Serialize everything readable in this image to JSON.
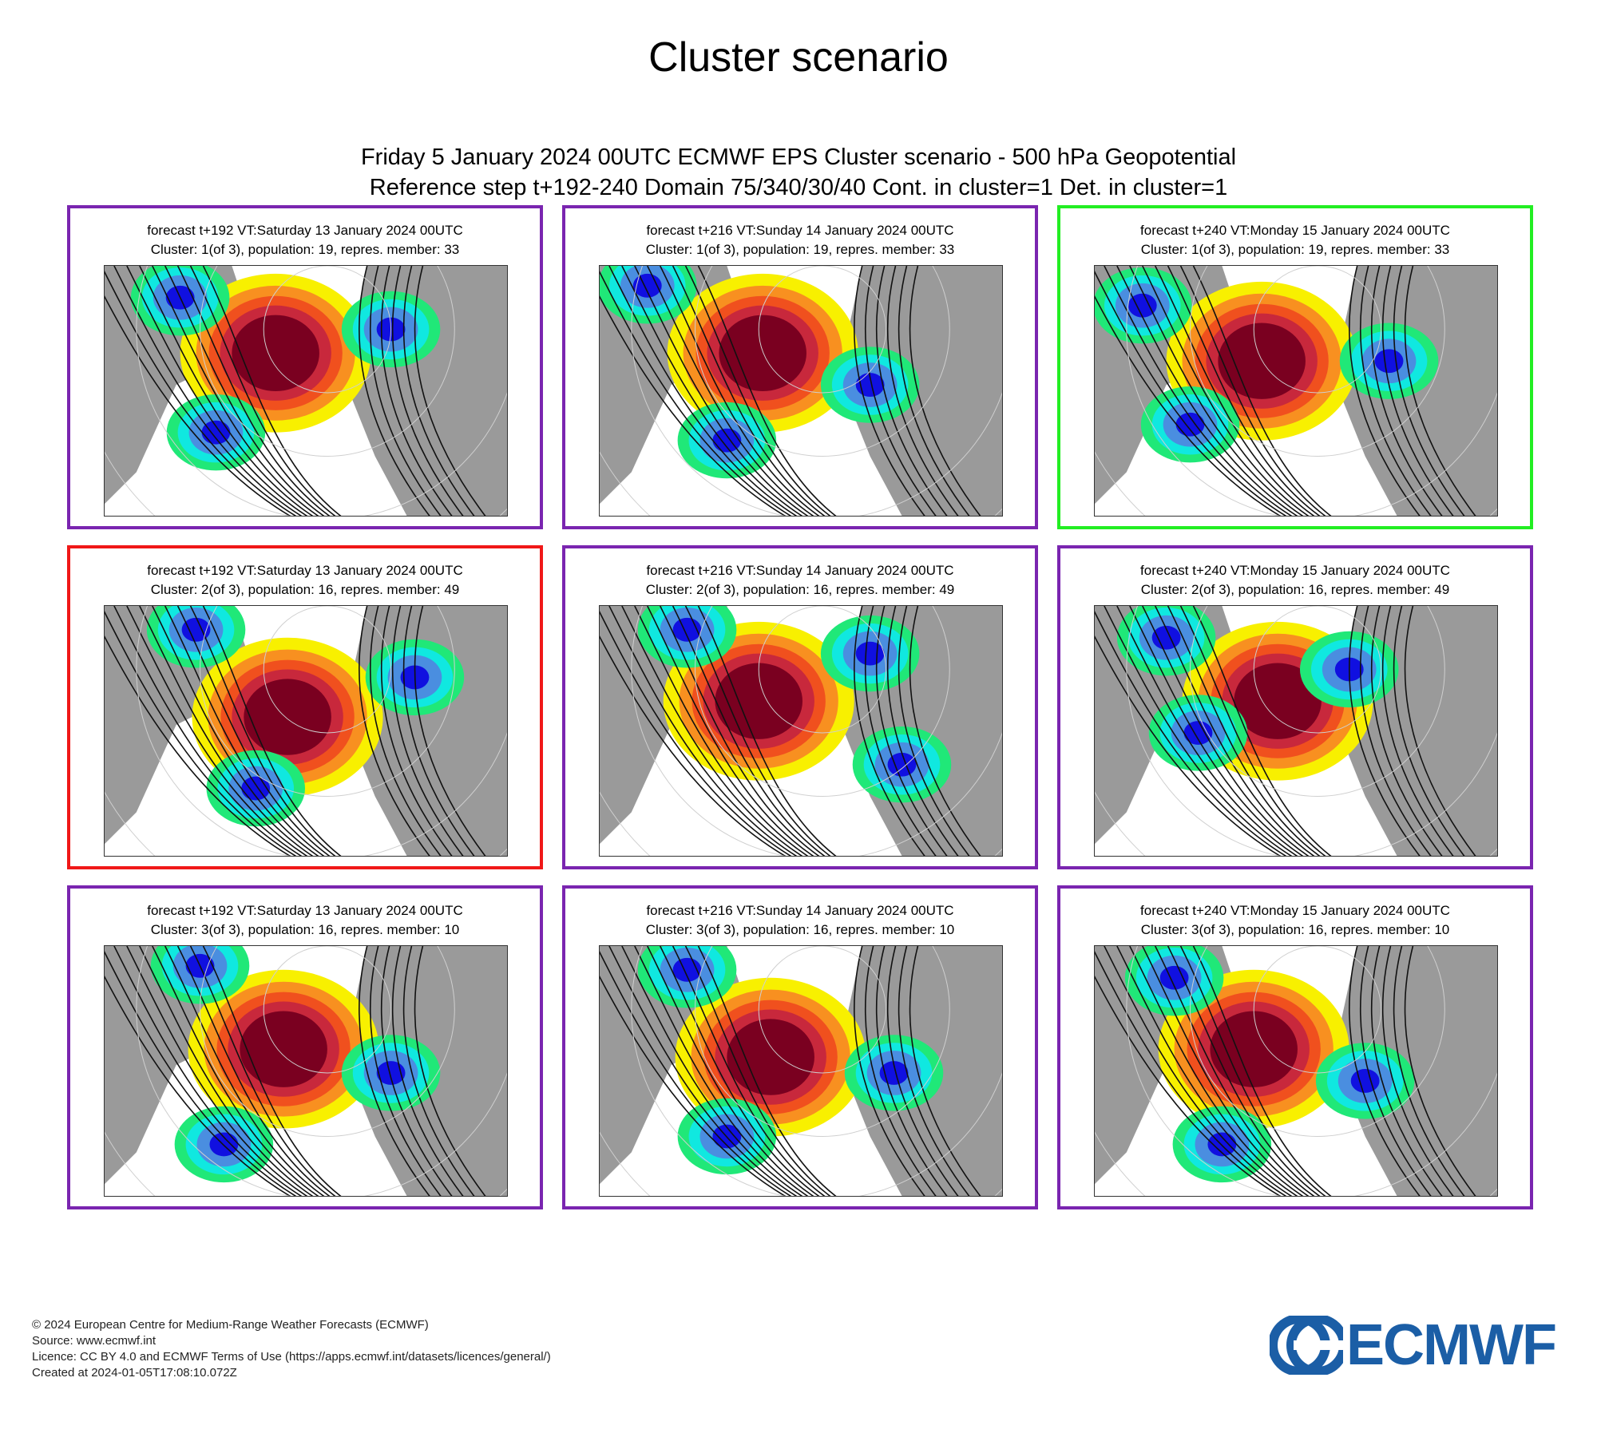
{
  "page_title": "Cluster scenario",
  "header": {
    "line1": "Friday 5 January 2024 00UTC ECMWF EPS Cluster scenario - 500 hPa Geopotential",
    "line2": "Reference step t+192-240 Domain 75/340/30/40 Cont. in cluster=1 Det. in cluster=1"
  },
  "panels": [
    {
      "title": "forecast t+192 VT:Saturday 13 January 2024 00UTC",
      "subtitle": "Cluster: 1(of 3), population: 19, repres. member: 33",
      "frame": "#7a25b0"
    },
    {
      "title": "forecast t+216 VT:Sunday 14 January 2024 00UTC",
      "subtitle": "Cluster: 1(of 3), population: 19, repres. member: 33",
      "frame": "#7a25b0"
    },
    {
      "title": "forecast t+240 VT:Monday 15 January 2024 00UTC",
      "subtitle": "Cluster: 1(of 3), population: 19, repres. member: 33",
      "frame": "#22ee22"
    },
    {
      "title": "forecast t+192 VT:Saturday 13 January 2024 00UTC",
      "subtitle": "Cluster: 2(of 3), population: 16, repres. member: 49",
      "frame": "#f01818"
    },
    {
      "title": "forecast t+216 VT:Sunday 14 January 2024 00UTC",
      "subtitle": "Cluster: 2(of 3), population: 16, repres. member: 49",
      "frame": "#7a25b0"
    },
    {
      "title": "forecast t+240 VT:Monday 15 January 2024 00UTC",
      "subtitle": "Cluster: 2(of 3), population: 16, repres. member: 49",
      "frame": "#7a25b0"
    },
    {
      "title": "forecast t+192 VT:Saturday 13 January 2024 00UTC",
      "subtitle": "Cluster: 3(of 3), population: 16, repres. member: 10",
      "frame": "#7a25b0"
    },
    {
      "title": "forecast t+216 VT:Sunday 14 January 2024 00UTC",
      "subtitle": "Cluster: 3(of 3), population: 16, repres. member: 10",
      "frame": "#7a25b0"
    },
    {
      "title": "forecast t+240 VT:Monday 15 January 2024 00UTC",
      "subtitle": "Cluster: 3(of 3), population: 16, repres. member: 10",
      "frame": "#7a25b0"
    }
  ],
  "colors": {
    "deep_positive": "#7a0020",
    "strong_positive": "#c8283c",
    "positive": "#f0501e",
    "weak_positive": "#f89020",
    "slight_positive": "#f8f000",
    "slight_negative": "#20e878",
    "weak_negative": "#10e8e0",
    "negative": "#4a8ee0",
    "strong_negative": "#1010e0",
    "land": "#9a9a9a",
    "logo_blue": "#1b5ea6"
  },
  "footer": {
    "copyright": "© 2024 European Centre for Medium-Range Weather Forecasts (ECMWF)",
    "source": "Source: www.ecmwf.int",
    "licence": "Licence: CC BY 4.0 and ECMWF Terms of Use (https://apps.ecmwf.int/datasets/licences/general/)",
    "created": "Created at 2024-01-05T17:08:10.072Z"
  },
  "logo": {
    "text": "ECMWF"
  }
}
